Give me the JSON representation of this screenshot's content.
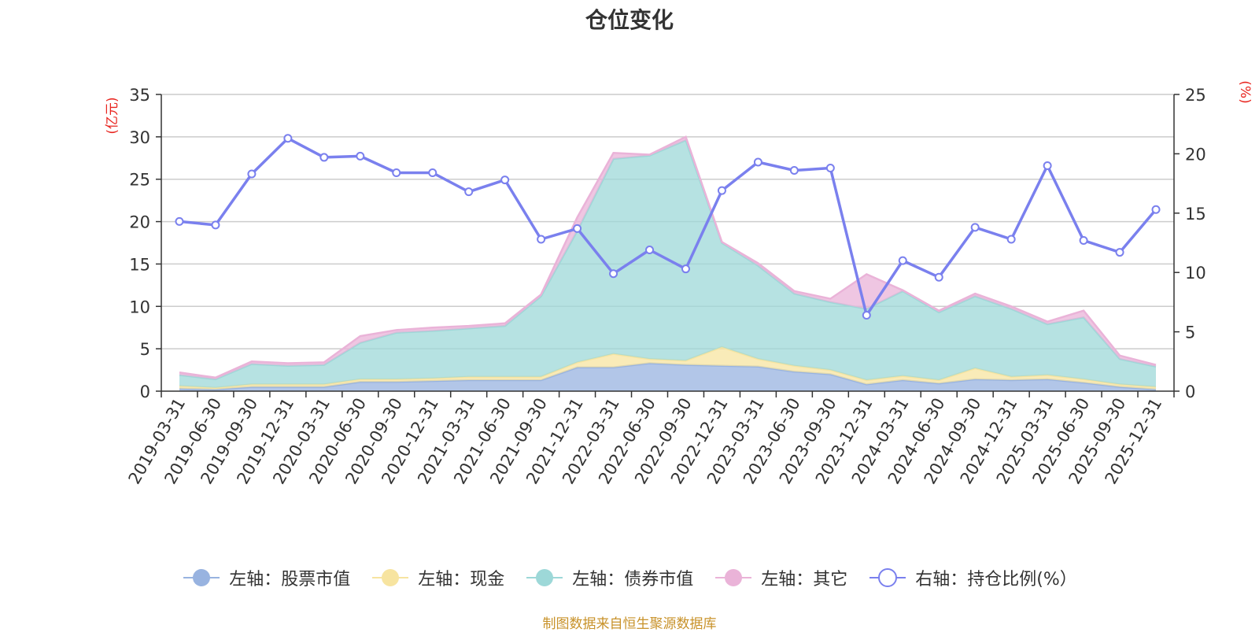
{
  "chart_data": {
    "type": "area",
    "title": "仓位变化",
    "left_axis_unit": "(亿元)",
    "right_axis_unit": "(%)",
    "ylim_left": [
      0,
      35
    ],
    "yticks_left": [
      0,
      5,
      10,
      15,
      20,
      25,
      30,
      35
    ],
    "ylim_right": [
      0,
      25
    ],
    "yticks_right": [
      0,
      5,
      10,
      15,
      20,
      25
    ],
    "categories": [
      "2019-03-31",
      "2019-06-30",
      "2019-09-30",
      "2019-12-31",
      "2020-03-31",
      "2020-06-30",
      "2020-09-30",
      "2020-12-31",
      "2021-03-31",
      "2021-06-30",
      "2021-09-30",
      "2021-12-31",
      "2022-03-31",
      "2022-06-30",
      "2022-09-30",
      "2022-12-31",
      "2023-03-31",
      "2023-06-30",
      "2023-09-30",
      "2023-12-31",
      "2024-03-31",
      "2024-06-30",
      "2024-09-30",
      "2024-12-31",
      "2025-03-31",
      "2025-06-30",
      "2025-09-30",
      "2025-12-31"
    ],
    "stacked_series": [
      {
        "name": "左轴：股票市值",
        "color": "#98b3e0",
        "values": [
          0.3,
          0.2,
          0.5,
          0.5,
          0.5,
          1.1,
          1.1,
          1.2,
          1.3,
          1.3,
          1.3,
          2.8,
          2.8,
          3.3,
          3.1,
          3.0,
          2.9,
          2.3,
          2.0,
          0.8,
          1.3,
          0.9,
          1.4,
          1.3,
          1.4,
          1.0,
          0.5,
          0.2
        ]
      },
      {
        "name": "左轴：现金",
        "color": "#f7e4a0",
        "values": [
          0.3,
          0.2,
          0.3,
          0.3,
          0.3,
          0.3,
          0.3,
          0.3,
          0.4,
          0.4,
          0.4,
          0.6,
          1.6,
          0.5,
          0.5,
          2.2,
          0.9,
          0.7,
          0.5,
          0.5,
          0.5,
          0.4,
          1.3,
          0.4,
          0.5,
          0.4,
          0.3,
          0.3
        ]
      },
      {
        "name": "左轴：债券市值",
        "color": "#9dd8d8",
        "values": [
          1.3,
          1.0,
          2.4,
          2.2,
          2.3,
          4.3,
          5.5,
          5.6,
          5.7,
          6.0,
          9.5,
          15.5,
          23.0,
          24.0,
          26.0,
          12.3,
          11.0,
          8.5,
          8.0,
          8.4,
          10.0,
          8.0,
          8.5,
          8.0,
          6.0,
          7.3,
          3.0,
          2.4
        ]
      },
      {
        "name": "左轴：其它",
        "color": "#eab3d8",
        "values": [
          0.3,
          0.2,
          0.3,
          0.3,
          0.3,
          0.8,
          0.3,
          0.4,
          0.3,
          0.3,
          0.2,
          1.6,
          0.7,
          0.1,
          0.4,
          0.1,
          0.3,
          0.3,
          0.4,
          4.1,
          0.1,
          0.2,
          0.3,
          0.3,
          0.3,
          0.8,
          0.4,
          0.2
        ]
      }
    ],
    "line_series": {
      "name": "右轴：持仓比例(%）",
      "color": "#7a80ee",
      "values": [
        14.3,
        14.0,
        18.3,
        21.3,
        19.7,
        19.8,
        18.4,
        18.4,
        16.8,
        17.8,
        12.8,
        13.7,
        9.9,
        11.9,
        10.3,
        16.9,
        19.3,
        18.6,
        18.8,
        6.4,
        11.0,
        9.6,
        13.8,
        12.8,
        19.0,
        12.7,
        11.7,
        15.3
      ]
    }
  },
  "source_note": "制图数据来自恒生聚源数据库"
}
